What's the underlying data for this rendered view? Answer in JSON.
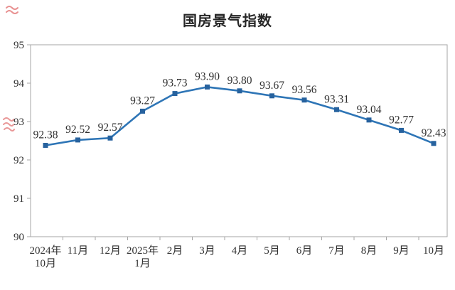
{
  "page": {
    "background": "#ffffff"
  },
  "chart_data": {
    "type": "line",
    "title": "国房景气指数",
    "categories": [
      [
        "2024年",
        "10月"
      ],
      [
        "11月"
      ],
      [
        "12月"
      ],
      [
        "2025年",
        "1月"
      ],
      [
        "2月"
      ],
      [
        "3月"
      ],
      [
        "4月"
      ],
      [
        "5月"
      ],
      [
        "6月"
      ],
      [
        "7月"
      ],
      [
        "8月"
      ],
      [
        "9月"
      ],
      [
        "10月"
      ]
    ],
    "values": [
      92.38,
      92.52,
      92.57,
      93.27,
      93.73,
      93.9,
      93.8,
      93.67,
      93.56,
      93.31,
      93.04,
      92.77,
      92.43
    ],
    "data_labels": [
      "92.38",
      "92.52",
      "92.57",
      "93.27",
      "93.73",
      "93.90",
      "93.80",
      "93.67",
      "93.56",
      "93.31",
      "93.04",
      "92.77",
      "92.43"
    ],
    "xlabel": "",
    "ylabel": "",
    "ylim": [
      90,
      95
    ],
    "yticks": [
      90,
      91,
      92,
      93,
      94,
      95
    ],
    "grid": false,
    "legend_position": "none",
    "colors": {
      "line": "#2e75b6",
      "marker": "#27629e",
      "axis": "#a6a6a6",
      "text": "#303030",
      "title": "#262626",
      "scribble": "#e06c6c"
    }
  },
  "artifacts": {
    "scribbles": [
      {
        "name": "red-scribble-top-left"
      },
      {
        "name": "red-scribble-left-edge"
      }
    ]
  }
}
